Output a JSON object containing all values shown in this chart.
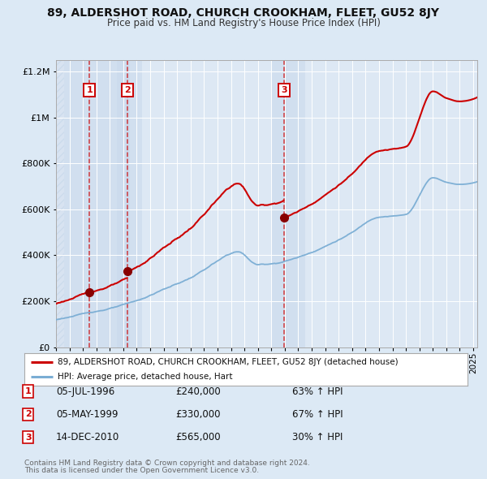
{
  "title": "89, ALDERSHOT ROAD, CHURCH CROOKHAM, FLEET, GU52 8JY",
  "subtitle": "Price paid vs. HM Land Registry's House Price Index (HPI)",
  "title_fontsize": 10,
  "subtitle_fontsize": 8.5,
  "bg_color": "#dce9f5",
  "plot_bg_color": "#dde8f4",
  "grid_color": "#ffffff",
  "red_line_color": "#cc0000",
  "blue_line_color": "#7aadd4",
  "sale_marker_color": "#880000",
  "dashed_line_color": "#cc0000",
  "shade_color": "#c8d8ec",
  "transactions": [
    {
      "num": 1,
      "date": "05-JUL-1996",
      "price": 240000,
      "pct": "63%",
      "year_x": 1996.5
    },
    {
      "num": 2,
      "date": "05-MAY-1999",
      "price": 330000,
      "pct": "67%",
      "year_x": 1999.33
    },
    {
      "num": 3,
      "date": "14-DEC-2010",
      "price": 565000,
      "pct": "30%",
      "year_x": 2010.95
    }
  ],
  "ylim": [
    0,
    1250000
  ],
  "xlim_start": 1994.0,
  "xlim_end": 2025.3,
  "yticks": [
    0,
    200000,
    400000,
    600000,
    800000,
    1000000,
    1200000
  ],
  "ytick_labels": [
    "£0",
    "£200K",
    "£400K",
    "£600K",
    "£800K",
    "£1M",
    "£1.2M"
  ],
  "legend1": "89, ALDERSHOT ROAD, CHURCH CROOKHAM, FLEET, GU52 8JY (detached house)",
  "legend2": "HPI: Average price, detached house, Hart",
  "footer1": "Contains HM Land Registry data © Crown copyright and database right 2024.",
  "footer2": "This data is licensed under the Open Government Licence v3.0."
}
